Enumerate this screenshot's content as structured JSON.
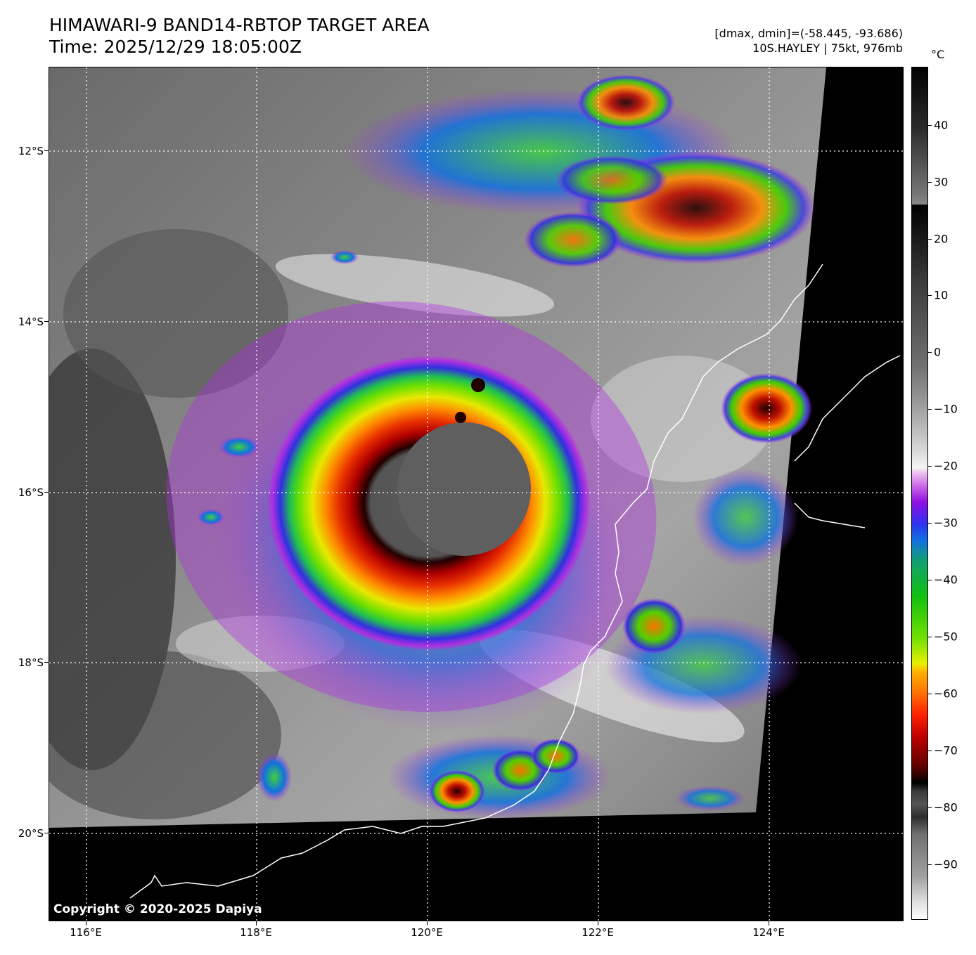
{
  "header": {
    "title_line1": "HIMAWARI-9 BAND14-RBTOP TARGET AREA",
    "title_line2": "Time: 2025/12/29 18:05:00Z",
    "range_text": "[dmax, dmin]=(-58.445, -93.686)",
    "storm_text": "10S.HAYLEY | 75kt, 976mb"
  },
  "map": {
    "copyright": "Copyright © 2020-2025 Dapiya",
    "lat_labels": [
      "12°S",
      "14°S",
      "16°S",
      "18°S",
      "20°S"
    ],
    "lon_labels": [
      "116°E",
      "118°E",
      "120°E",
      "122°E",
      "124°E"
    ],
    "storm_center": {
      "lat": -16.0,
      "lon": 120.2
    }
  },
  "colorbar": {
    "unit": "°C",
    "labels": [
      "40",
      "30",
      "20",
      "10",
      "0",
      "−10",
      "−20",
      "−30",
      "−40",
      "−50",
      "−60",
      "−70",
      "−80",
      "−90"
    ]
  },
  "colors": {
    "background": "#000000",
    "coastline": "#ffffff",
    "grid": "#ffffff"
  }
}
